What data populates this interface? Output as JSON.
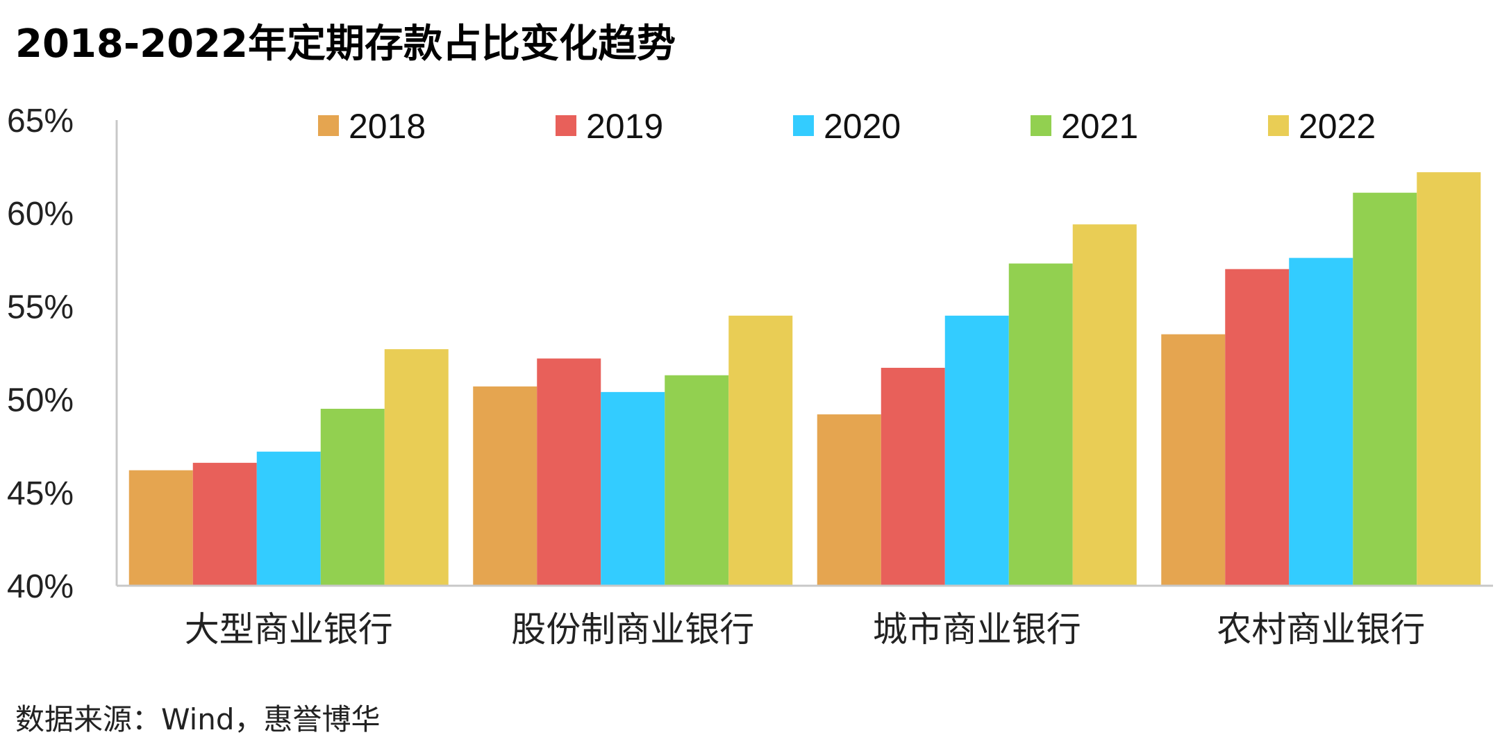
{
  "title": "2018-2022年定期存款占比变化趋势",
  "source": "数据来源：Wind，惠誉博华",
  "chart_data": {
    "type": "bar",
    "categories": [
      "大型商业银行",
      "股份制商业银行",
      "城市商业银行",
      "农村商业银行"
    ],
    "series": [
      {
        "name": "2018",
        "color": "#E5A550",
        "values": [
          46.2,
          50.7,
          49.2,
          53.5
        ]
      },
      {
        "name": "2019",
        "color": "#E8605A",
        "values": [
          46.6,
          52.2,
          51.7,
          57.0
        ]
      },
      {
        "name": "2020",
        "color": "#33CCFF",
        "values": [
          47.2,
          50.4,
          54.5,
          57.6
        ]
      },
      {
        "name": "2021",
        "color": "#92D050",
        "values": [
          49.5,
          51.3,
          57.3,
          61.1
        ]
      },
      {
        "name": "2022",
        "color": "#E9CD55",
        "values": [
          52.7,
          54.5,
          59.4,
          62.2
        ]
      }
    ],
    "y_ticks": [
      "40%",
      "45%",
      "50%",
      "55%",
      "60%",
      "65%"
    ],
    "ylim": [
      40,
      65
    ],
    "legend_position": "top",
    "grid": false
  }
}
